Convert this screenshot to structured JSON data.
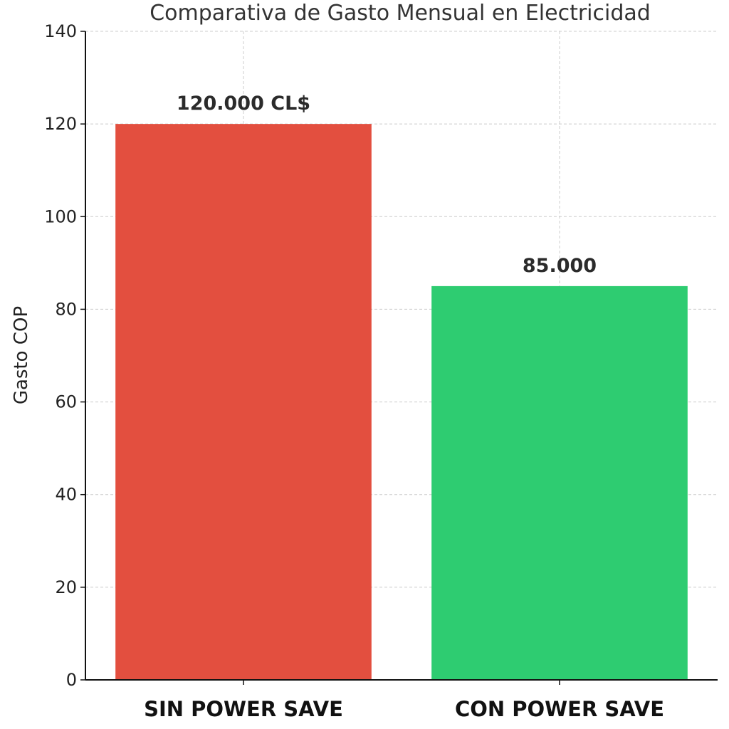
{
  "chart_data": {
    "type": "bar",
    "title": "Comparativa de Gasto Mensual en Electricidad",
    "ylabel": "Gasto COP",
    "xlabel": "",
    "categories": [
      "SIN POWER SAVE",
      "CON POWER SAVE"
    ],
    "values": [
      120,
      85
    ],
    "data_labels": [
      "120.000 CL$",
      "85.000"
    ],
    "colors": [
      "#e34f3f",
      "#2ecc71"
    ],
    "ylim": [
      0,
      140
    ],
    "yticks": [
      0,
      20,
      40,
      60,
      80,
      100,
      120,
      140
    ],
    "grid": true,
    "legend": "none"
  }
}
